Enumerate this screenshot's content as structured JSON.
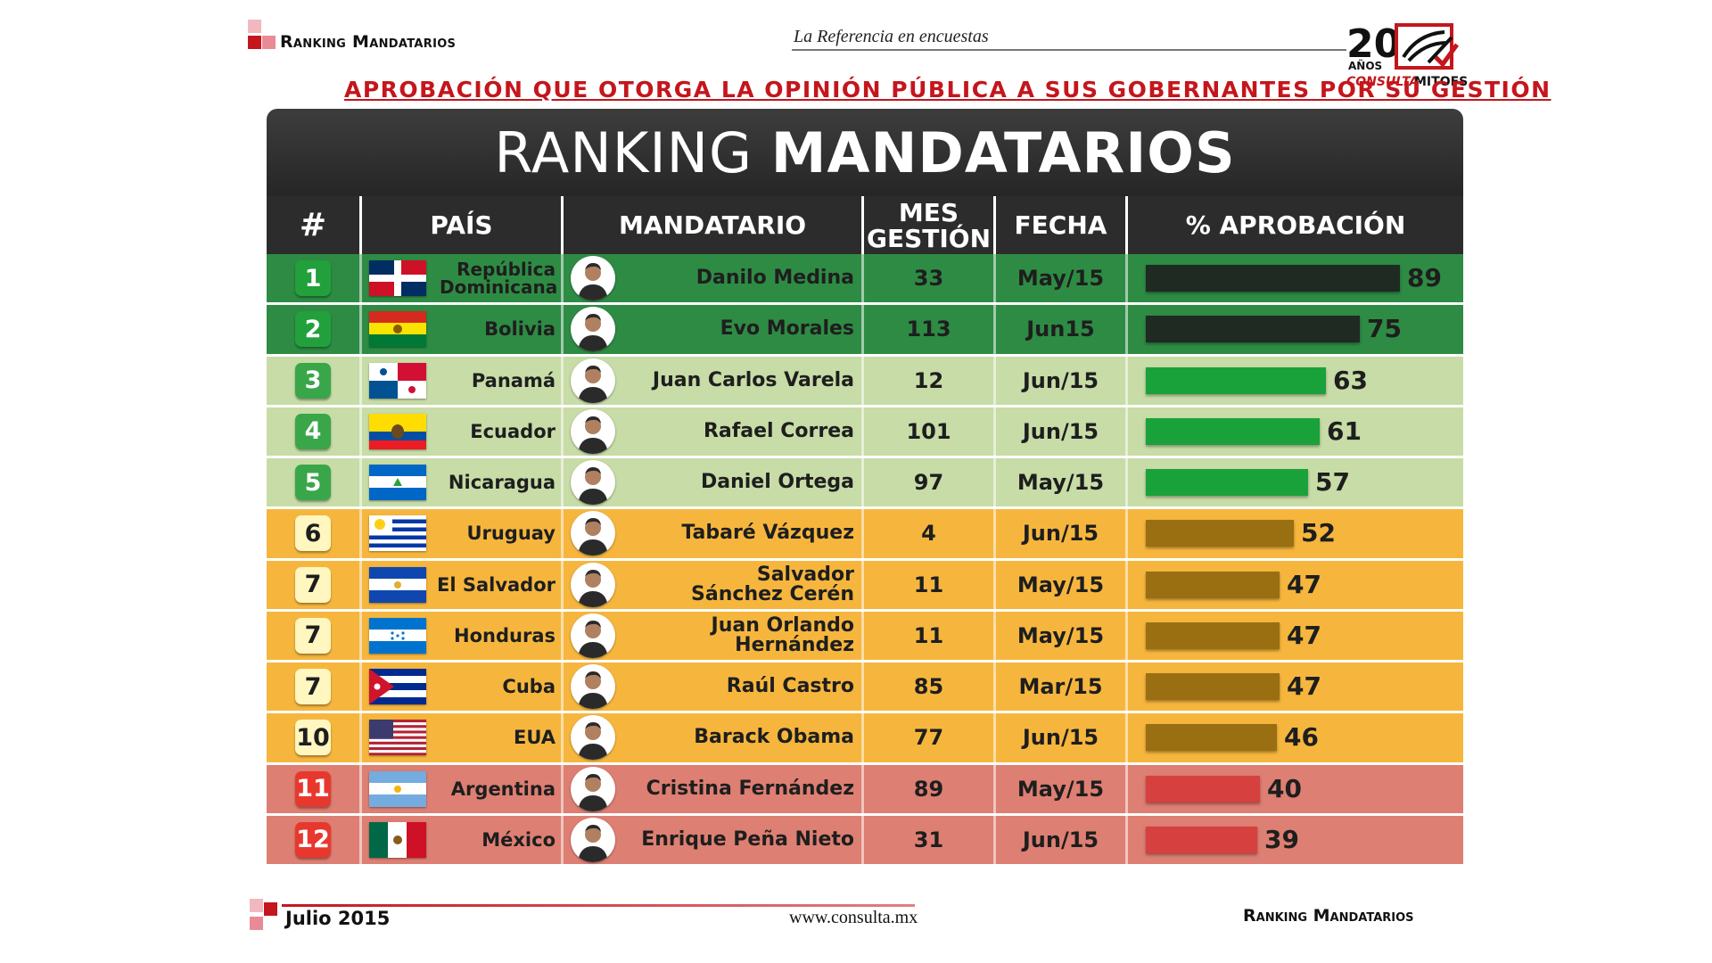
{
  "header": {
    "left_label": "Ranking Mandatarios",
    "tagline": "La Referencia en encuestas",
    "brand_number": "20",
    "brand_years": "AÑOS",
    "brand_consulta": "CONSULTA",
    "brand_mitofsky": "MITOFSKY",
    "subtitle": "APROBACIÓN QUE OTORGA LA OPINIÓN PÚBLICA A SUS GOBERNANTES POR SU GESTIÓN"
  },
  "panel": {
    "title_regular": "RANKING ",
    "title_bold": "MANDATARIOS",
    "columns": {
      "rank": "#",
      "country": "PAÍS",
      "leader": "MANDATARIO",
      "months_line1": "MES",
      "months_line2": "GESTIÓN",
      "date": "FECHA",
      "approval": "% APROBACIÓN"
    }
  },
  "colors": {
    "green_row": "#2e8b44",
    "green_bar": "#1f2a22",
    "lightgreen_row": "#c7dca6",
    "lightgreen_bar": "#1aa23a",
    "orange_row": "#f6b63e",
    "orange_bar": "#9a6f12",
    "red_row": "#dd7f72",
    "red_bar": "#d6403f"
  },
  "chart_data": {
    "type": "bar",
    "orientation": "horizontal",
    "title": "RANKING MANDATARIOS",
    "ylabel": "% APROBACIÓN",
    "xlim": [
      0,
      100
    ],
    "rows": [
      {
        "rank": "1",
        "country": "República Dominicana",
        "leader": "Danilo Medina",
        "months": "33",
        "date": "May/15",
        "approval": 89,
        "tier": "green",
        "flag": "dom"
      },
      {
        "rank": "2",
        "country": "Bolivia",
        "leader": "Evo Morales",
        "months": "113",
        "date": "Jun15",
        "approval": 75,
        "tier": "green",
        "flag": "bol"
      },
      {
        "rank": "3",
        "country": "Panamá",
        "leader": "Juan Carlos Varela",
        "months": "12",
        "date": "Jun/15",
        "approval": 63,
        "tier": "lightgreen",
        "flag": "pan"
      },
      {
        "rank": "4",
        "country": "Ecuador",
        "leader": "Rafael Correa",
        "months": "101",
        "date": "Jun/15",
        "approval": 61,
        "tier": "lightgreen",
        "flag": "ecu"
      },
      {
        "rank": "5",
        "country": "Nicaragua",
        "leader": "Daniel Ortega",
        "months": "97",
        "date": "May/15",
        "approval": 57,
        "tier": "lightgreen",
        "flag": "nic"
      },
      {
        "rank": "6",
        "country": "Uruguay",
        "leader": "Tabaré Vázquez",
        "months": "4",
        "date": "Jun/15",
        "approval": 52,
        "tier": "orange",
        "flag": "ury"
      },
      {
        "rank": "7",
        "country": "El Salvador",
        "leader": "Salvador Sánchez Cerén",
        "months": "11",
        "date": "May/15",
        "approval": 47,
        "tier": "orange",
        "flag": "slv"
      },
      {
        "rank": "7",
        "country": "Honduras",
        "leader": "Juan Orlando Hernández",
        "months": "11",
        "date": "May/15",
        "approval": 47,
        "tier": "orange",
        "flag": "hnd"
      },
      {
        "rank": "7",
        "country": "Cuba",
        "leader": "Raúl Castro",
        "months": "85",
        "date": "Mar/15",
        "approval": 47,
        "tier": "orange",
        "flag": "cub"
      },
      {
        "rank": "10",
        "country": "EUA",
        "leader": "Barack Obama",
        "months": "77",
        "date": "Jun/15",
        "approval": 46,
        "tier": "orange",
        "flag": "usa"
      },
      {
        "rank": "11",
        "country": "Argentina",
        "leader": "Cristina Fernández",
        "months": "89",
        "date": "May/15",
        "approval": 40,
        "tier": "red",
        "flag": "arg"
      },
      {
        "rank": "12",
        "country": "México",
        "leader": "Enrique Peña Nieto",
        "months": "31",
        "date": "Jun/15",
        "approval": 39,
        "tier": "red",
        "flag": "mex"
      }
    ]
  },
  "footer": {
    "date": "Julio 2015",
    "url": "www.consulta.mx",
    "right_label": "Ranking Mandatarios"
  }
}
